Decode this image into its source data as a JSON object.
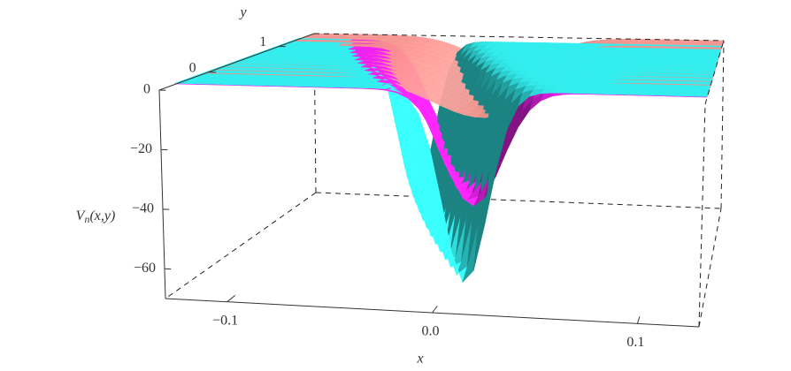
{
  "chart_data": {
    "type": "surface3d",
    "xlabel": "x",
    "ylabel": "y",
    "zlabel": {
      "base": "V",
      "sub": "n",
      "args": "(x,y)"
    },
    "xlim": [
      -0.13,
      0.13
    ],
    "ylim": [
      -0.7,
      1.5
    ],
    "zlim": [
      -70,
      0
    ],
    "xticks": [
      {
        "value": -0.1,
        "label": "−0.1"
      },
      {
        "value": 0,
        "label": "0.0"
      },
      {
        "value": 0.1,
        "label": "0.1"
      }
    ],
    "yticks": [
      0,
      1
    ],
    "zticks": [
      0,
      {
        "value": -20,
        "label": "−20"
      },
      {
        "value": -40,
        "label": "−40"
      },
      {
        "value": -60,
        "label": "−60"
      }
    ],
    "series": [
      {
        "color": "#f4918c",
        "min": -12
      },
      {
        "color": "#ee22ee",
        "min": -38
      },
      {
        "color": "#33eeee",
        "min": -64
      }
    ]
  }
}
